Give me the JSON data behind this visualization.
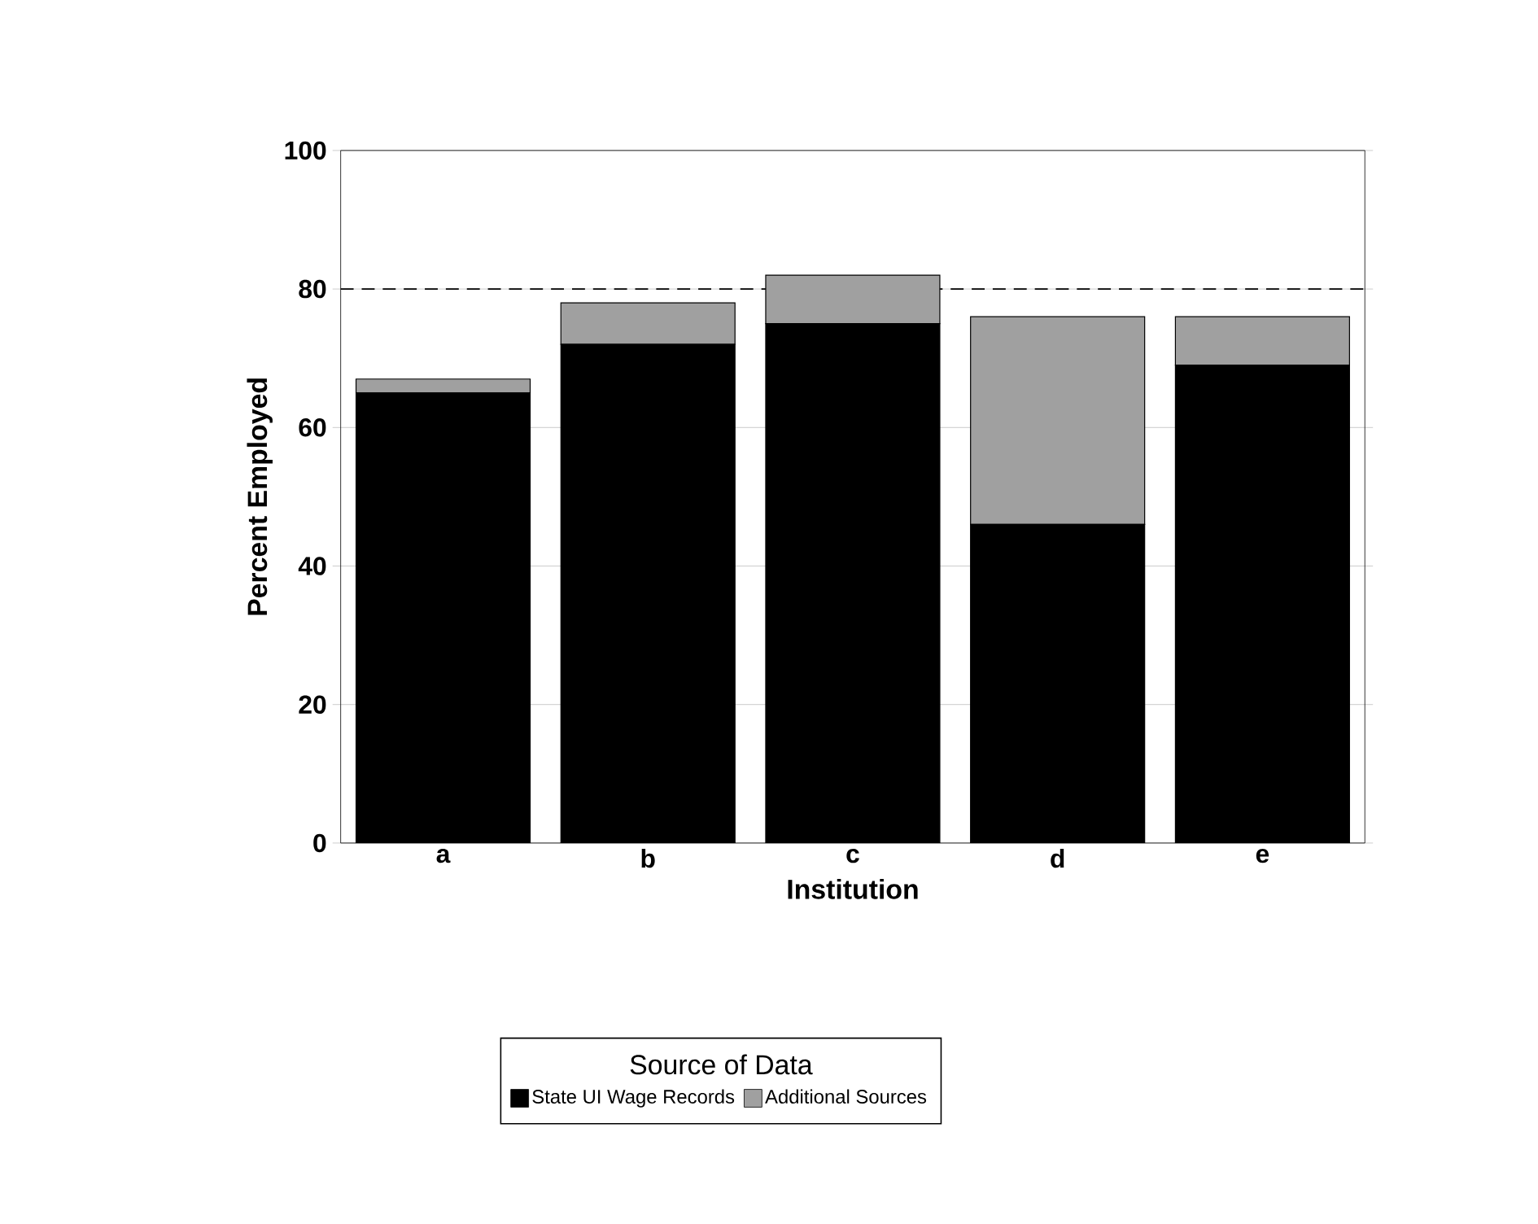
{
  "chart_data": {
    "type": "bar",
    "stacked": true,
    "categories": [
      "a",
      "b",
      "c",
      "d",
      "e"
    ],
    "series": [
      {
        "name": "State UI Wage Records",
        "color": "#000000",
        "values": [
          65,
          72,
          75,
          46,
          69
        ]
      },
      {
        "name": "Additional Sources",
        "color": "#a0a0a0",
        "values": [
          2,
          6,
          7,
          30,
          7
        ]
      }
    ],
    "xlabel": "Institution",
    "ylabel": "Percent Employed",
    "legend_title": "Source of Data",
    "legend": "bottom",
    "ylim": [
      0,
      100
    ],
    "yticks": [
      0,
      20,
      40,
      60,
      80,
      100
    ],
    "grid": "y",
    "ref_lines": [
      {
        "axis": "y",
        "value": 80,
        "line_style": "dashed"
      }
    ]
  }
}
